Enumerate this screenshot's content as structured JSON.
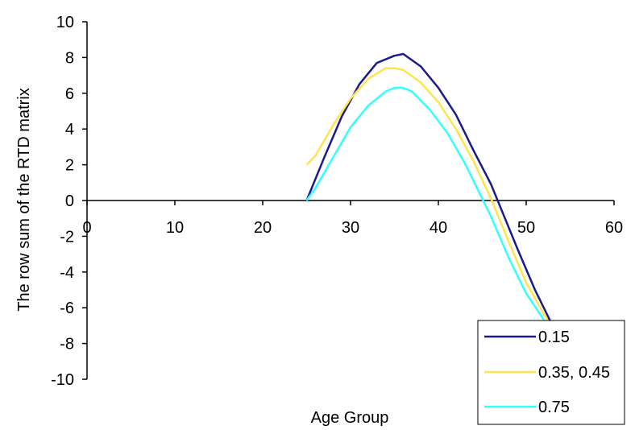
{
  "chart_data": {
    "type": "line",
    "title": "",
    "xlabel": "Age Group",
    "ylabel": "The row sum of the RTD matrix",
    "xlim": [
      0,
      60
    ],
    "ylim": [
      -10,
      10
    ],
    "x_ticks": [
      "0",
      "10",
      "20",
      "30",
      "40",
      "50",
      "60"
    ],
    "y_ticks": [
      "10",
      "8",
      "6",
      "4",
      "2",
      "0",
      "-2",
      "-4",
      "-6",
      "-8",
      "-10"
    ],
    "grid": false,
    "legend_position": "bottom-right",
    "series": [
      {
        "name": "0.15",
        "color": "#1a1a8c",
        "points": [
          [
            25,
            0
          ],
          [
            27,
            2.4
          ],
          [
            29,
            4.7
          ],
          [
            31,
            6.5
          ],
          [
            33,
            7.7
          ],
          [
            35,
            8.1
          ],
          [
            36,
            8.2
          ],
          [
            38,
            7.5
          ],
          [
            40,
            6.3
          ],
          [
            42,
            4.8
          ],
          [
            44,
            2.8
          ],
          [
            46,
            0.9
          ],
          [
            47,
            -0.3
          ],
          [
            49,
            -2.7
          ],
          [
            51,
            -5.0
          ],
          [
            53,
            -7.0
          ]
        ]
      },
      {
        "name": "0.35, 0.45",
        "color": "#ffe44d",
        "points": [
          [
            25,
            2.0
          ],
          [
            26,
            2.5
          ],
          [
            28,
            4.2
          ],
          [
            30,
            5.7
          ],
          [
            32,
            6.8
          ],
          [
            34,
            7.4
          ],
          [
            35,
            7.4
          ],
          [
            36,
            7.3
          ],
          [
            38,
            6.6
          ],
          [
            40,
            5.5
          ],
          [
            42,
            4.0
          ],
          [
            44,
            2.2
          ],
          [
            46,
            0.1
          ],
          [
            48,
            -2.3
          ],
          [
            50,
            -4.6
          ],
          [
            53,
            -7.2
          ]
        ]
      },
      {
        "name": "0.75",
        "color": "#33ffff",
        "points": [
          [
            25,
            0
          ],
          [
            26,
            0.7
          ],
          [
            28,
            2.4
          ],
          [
            30,
            4.1
          ],
          [
            32,
            5.3
          ],
          [
            34,
            6.1
          ],
          [
            35,
            6.3
          ],
          [
            36,
            6.3
          ],
          [
            37,
            6.1
          ],
          [
            39,
            5.1
          ],
          [
            41,
            3.8
          ],
          [
            43,
            2.1
          ],
          [
            45,
            0.1
          ],
          [
            46,
            -0.9
          ],
          [
            48,
            -3.2
          ],
          [
            50,
            -5.2
          ],
          [
            53,
            -7.4
          ]
        ]
      }
    ]
  }
}
